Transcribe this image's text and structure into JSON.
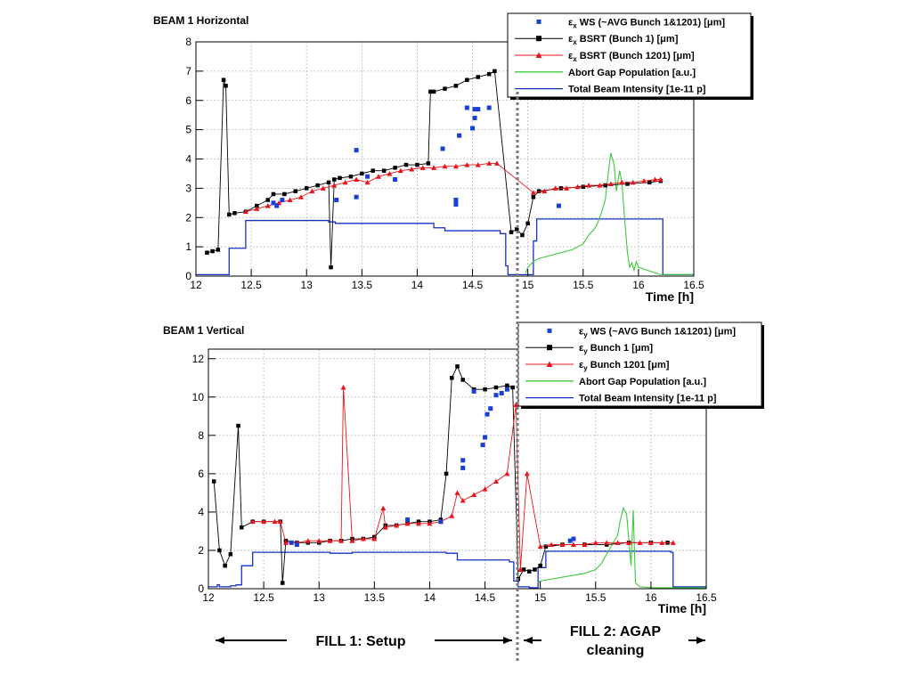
{
  "colors": {
    "ws": "#1a3fd6",
    "bsrt_bunch1": "#000000",
    "bsrt_bunch1201": "#e8141b",
    "abort_gap": "#3ec93e",
    "intensity": "#1631c4",
    "grid": "#b9b9b9",
    "divider": "#7a7a7a"
  },
  "chart_data": [
    {
      "type": "line",
      "title": "BEAM 1 Horizontal",
      "xlabel": "Time [h]",
      "ylabel": "",
      "xlim": [
        12,
        16.5
      ],
      "ylim": [
        0,
        8
      ],
      "xticks": [
        "12",
        "12.5",
        "13",
        "13.5",
        "14",
        "14.5",
        "15",
        "15.5",
        "16",
        "16.5"
      ],
      "yticks": [
        "0",
        "1",
        "2",
        "3",
        "4",
        "5",
        "6",
        "7",
        "8"
      ],
      "grid": true,
      "legend_position": "top-right",
      "legend": [
        {
          "sym": "ε",
          "sub": "x",
          "text": " WS (~AVG Bunch 1&1201) [μm]",
          "kind": "ws"
        },
        {
          "sym": "ε",
          "sub": "x",
          "text": " BSRT (Bunch 1)    [μm]",
          "kind": "bsrt_bunch1"
        },
        {
          "sym": "ε",
          "sub": "x",
          "text": " BSRT (Bunch 1201) [μm]",
          "kind": "bsrt_bunch1201"
        },
        {
          "sym": "",
          "sub": "",
          "text": "Abort Gap Population [a.u.]",
          "kind": "abort_gap"
        },
        {
          "sym": "",
          "sub": "",
          "text": "Total Beam Intensity [1e-11 p]",
          "kind": "intensity"
        }
      ],
      "series": [
        {
          "kind": "intensity",
          "style": "step",
          "x": [
            12.0,
            12.27,
            12.3,
            12.45,
            13.2,
            13.26,
            14.15,
            14.25,
            14.75,
            14.8,
            14.82,
            14.9,
            15.05,
            15.08,
            16.2,
            16.22,
            16.5
          ],
          "y": [
            0.05,
            0.05,
            0.95,
            1.9,
            1.85,
            1.8,
            1.65,
            1.55,
            1.45,
            0.35,
            0.05,
            0.05,
            1.2,
            1.95,
            1.95,
            0.05,
            0.05
          ]
        },
        {
          "kind": "abort_gap",
          "style": "line",
          "x": [
            14.98,
            15.0,
            15.05,
            15.1,
            15.2,
            15.3,
            15.4,
            15.5,
            15.55,
            15.6,
            15.63,
            15.66,
            15.7,
            15.72,
            15.75,
            15.78,
            15.8,
            15.83,
            15.85,
            15.87,
            15.9,
            15.92,
            15.94,
            15.96,
            15.98,
            16.0,
            16.2,
            16.4,
            16.5
          ],
          "y": [
            0.1,
            0.3,
            0.5,
            0.6,
            0.7,
            0.8,
            0.9,
            1.1,
            1.4,
            1.6,
            1.8,
            2.1,
            2.6,
            3.3,
            4.2,
            3.8,
            2.9,
            3.6,
            3.2,
            2.2,
            0.8,
            0.3,
            0.45,
            0.2,
            0.5,
            0.3,
            0.05,
            0.05,
            0.05
          ]
        },
        {
          "kind": "bsrt_bunch1",
          "style": "markers",
          "x": [
            12.1,
            12.15,
            12.2,
            12.25,
            12.27,
            12.3,
            12.35,
            12.45,
            12.55,
            12.65,
            12.7,
            12.8,
            12.9,
            13.0,
            13.1,
            13.2,
            13.22,
            13.25,
            13.3,
            13.4,
            13.5,
            13.6,
            13.7,
            13.8,
            13.9,
            14.0,
            14.1,
            14.12,
            14.15,
            14.25,
            14.35,
            14.45,
            14.55,
            14.65,
            14.7,
            14.85,
            14.9,
            14.95,
            15.0,
            15.05,
            15.1,
            15.3,
            15.5,
            15.7,
            15.9,
            16.1,
            16.2
          ],
          "y": [
            0.8,
            0.85,
            0.9,
            6.7,
            6.5,
            2.1,
            2.15,
            2.2,
            2.4,
            2.6,
            2.8,
            2.8,
            2.9,
            3.0,
            3.1,
            3.2,
            0.3,
            3.3,
            3.35,
            3.4,
            3.5,
            3.6,
            3.6,
            3.7,
            3.8,
            3.8,
            3.85,
            6.3,
            6.3,
            6.4,
            6.5,
            6.7,
            6.8,
            6.9,
            7.0,
            1.5,
            1.6,
            1.4,
            1.8,
            2.7,
            2.9,
            3.0,
            3.05,
            3.1,
            3.15,
            3.2,
            3.25
          ]
        },
        {
          "kind": "bsrt_bunch1201",
          "style": "markers",
          "x": [
            12.45,
            12.55,
            12.65,
            12.75,
            12.85,
            12.95,
            13.05,
            13.15,
            13.25,
            13.35,
            13.45,
            13.55,
            13.65,
            13.75,
            13.85,
            13.95,
            14.05,
            14.15,
            14.25,
            14.35,
            14.45,
            14.55,
            14.65,
            14.72,
            15.05,
            15.15,
            15.25,
            15.35,
            15.45,
            15.55,
            15.65,
            15.75,
            15.85,
            15.95,
            16.05,
            16.15,
            16.2
          ],
          "y": [
            2.2,
            2.3,
            2.4,
            2.5,
            2.6,
            2.7,
            2.9,
            3.0,
            3.1,
            3.2,
            3.3,
            3.2,
            3.4,
            3.5,
            3.6,
            3.65,
            3.7,
            3.7,
            3.75,
            3.75,
            3.8,
            3.8,
            3.85,
            3.85,
            2.85,
            2.9,
            3.0,
            3.0,
            3.05,
            3.1,
            3.1,
            3.15,
            3.2,
            3.2,
            3.25,
            3.3,
            3.3
          ]
        },
        {
          "kind": "ws",
          "style": "markers",
          "x": [
            12.7,
            12.73,
            12.78,
            13.27,
            13.45,
            13.45,
            13.55,
            13.8,
            14.23,
            14.35,
            14.35,
            14.38,
            14.45,
            14.5,
            14.52,
            14.52,
            14.55,
            14.65,
            15.28
          ],
          "y": [
            2.5,
            2.4,
            2.6,
            2.6,
            2.7,
            4.3,
            3.4,
            3.3,
            4.35,
            2.6,
            2.45,
            4.8,
            5.75,
            5.05,
            5.4,
            5.7,
            5.7,
            5.75,
            2.4
          ]
        }
      ]
    },
    {
      "type": "line",
      "title": "BEAM 1 Vertical",
      "xlabel": "Time [h]",
      "ylabel": "",
      "xlim": [
        12,
        16.5
      ],
      "ylim": [
        0,
        12.5
      ],
      "xticks": [
        "12",
        "12.5",
        "13",
        "13.5",
        "14",
        "14.5",
        "15",
        "15.5",
        "16",
        "16.5"
      ],
      "yticks": [
        "0",
        "2",
        "4",
        "6",
        "8",
        "10",
        "12"
      ],
      "grid": true,
      "legend_position": "top-right",
      "legend": [
        {
          "sym": "ε",
          "sub": "y",
          "text": " WS (~AVG Bunch 1&1201) [μm]",
          "kind": "ws"
        },
        {
          "sym": "ε",
          "sub": "y",
          "text": " Bunch 1    [μm]",
          "kind": "bsrt_bunch1"
        },
        {
          "sym": "ε",
          "sub": "y",
          "text": " Bunch 1201 [μm]",
          "kind": "bsrt_bunch1201"
        },
        {
          "sym": "",
          "sub": "",
          "text": "Abort Gap Population [a.u.]",
          "kind": "abort_gap"
        },
        {
          "sym": "",
          "sub": "",
          "text": "Total Beam Intensity [1e-11 p]",
          "kind": "intensity"
        }
      ],
      "series": [
        {
          "kind": "intensity",
          "style": "step",
          "x": [
            12.0,
            12.08,
            12.1,
            12.2,
            12.25,
            12.3,
            12.4,
            13.1,
            13.3,
            14.15,
            14.25,
            14.72,
            14.76,
            14.8,
            14.9,
            14.98,
            15.05,
            16.18,
            16.2,
            16.5
          ],
          "y": [
            0.1,
            0.2,
            0.1,
            0.15,
            0.2,
            1.2,
            1.9,
            1.85,
            1.9,
            1.85,
            1.5,
            1.4,
            0.4,
            0.1,
            0.05,
            1.1,
            1.95,
            1.9,
            0.1,
            0.05
          ]
        },
        {
          "kind": "abort_gap",
          "style": "line",
          "x": [
            14.98,
            15.0,
            15.1,
            15.2,
            15.3,
            15.4,
            15.5,
            15.55,
            15.6,
            15.65,
            15.7,
            15.72,
            15.75,
            15.78,
            15.8,
            15.82,
            15.84,
            15.86,
            15.9,
            16.0,
            16.5
          ],
          "y": [
            0.3,
            0.4,
            0.5,
            0.6,
            0.7,
            0.8,
            1.0,
            1.3,
            1.8,
            2.3,
            2.8,
            3.5,
            4.2,
            3.9,
            2.6,
            1.2,
            4.1,
            0.3,
            0.1,
            0.05,
            0.05
          ]
        },
        {
          "kind": "bsrt_bunch1",
          "style": "markers",
          "x": [
            12.05,
            12.1,
            12.15,
            12.2,
            12.27,
            12.3,
            12.4,
            12.5,
            12.65,
            12.67,
            12.7,
            12.8,
            12.9,
            13.0,
            13.1,
            13.2,
            13.3,
            13.4,
            13.5,
            13.6,
            13.7,
            13.8,
            13.9,
            14.0,
            14.1,
            14.15,
            14.2,
            14.25,
            14.3,
            14.4,
            14.5,
            14.6,
            14.7,
            14.75,
            14.8,
            14.85,
            14.9,
            14.95,
            15.0,
            15.05,
            15.2,
            15.4,
            15.6,
            15.8,
            16.0,
            16.15
          ],
          "y": [
            5.6,
            2.0,
            1.2,
            1.8,
            8.5,
            3.2,
            3.5,
            3.5,
            3.5,
            0.3,
            2.5,
            2.4,
            2.4,
            2.4,
            2.5,
            2.5,
            2.6,
            2.6,
            2.7,
            3.3,
            3.3,
            3.4,
            3.5,
            3.5,
            3.6,
            6.0,
            11.0,
            11.6,
            10.9,
            10.4,
            10.4,
            10.5,
            10.6,
            10.5,
            0.5,
            1.0,
            0.9,
            1.0,
            1.2,
            2.2,
            2.3,
            2.3,
            2.3,
            2.4,
            2.4,
            2.4
          ]
        },
        {
          "kind": "bsrt_bunch1201",
          "style": "markers",
          "x": [
            12.4,
            12.5,
            12.6,
            12.65,
            12.7,
            12.8,
            12.9,
            13.0,
            13.1,
            13.2,
            13.22,
            13.3,
            13.4,
            13.5,
            13.58,
            13.6,
            13.7,
            13.8,
            13.9,
            14.0,
            14.1,
            14.2,
            14.25,
            14.3,
            14.4,
            14.5,
            14.6,
            14.7,
            14.78,
            14.82,
            14.88,
            15.0,
            15.1,
            15.2,
            15.3,
            15.4,
            15.5,
            15.6,
            15.7,
            15.8,
            15.9,
            16.0,
            16.1,
            16.2
          ],
          "y": [
            3.5,
            3.5,
            3.5,
            3.5,
            2.4,
            2.4,
            2.5,
            2.5,
            2.5,
            2.5,
            10.5,
            2.5,
            2.6,
            2.6,
            4.2,
            3.2,
            3.3,
            3.4,
            3.4,
            3.4,
            3.5,
            3.8,
            5.0,
            4.6,
            4.9,
            5.2,
            5.6,
            6.0,
            9.6,
            1.0,
            6.0,
            2.2,
            2.3,
            2.3,
            2.3,
            2.3,
            2.4,
            2.4,
            2.4,
            2.4,
            2.4,
            2.4,
            2.4,
            2.4
          ]
        },
        {
          "kind": "ws",
          "style": "markers",
          "x": [
            12.75,
            12.8,
            13.8,
            14.1,
            14.3,
            14.3,
            14.4,
            14.48,
            14.5,
            14.52,
            14.55,
            14.6,
            14.65,
            14.7,
            15.27,
            15.3
          ],
          "y": [
            2.4,
            2.3,
            3.6,
            3.5,
            6.3,
            6.7,
            10.3,
            7.5,
            7.9,
            9.1,
            9.4,
            10.1,
            10.2,
            10.4,
            2.5,
            2.6
          ]
        }
      ]
    }
  ],
  "annotations": {
    "fill1": "FILL 1: Setup",
    "fill2_line1": "FILL 2: AGAP",
    "fill2_line2": "cleaning"
  }
}
